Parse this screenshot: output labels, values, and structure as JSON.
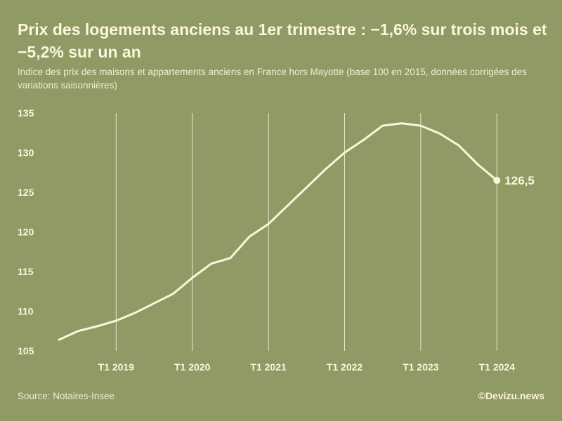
{
  "header": {
    "title": "Prix des logements anciens au 1er trimestre : −1,6% sur trois mois et −5,2% sur un an",
    "subtitle": "Indice des prix des maisons et appartements anciens en France hors Mayotte (base 100 en 2015, données corrigées des variations saisonnières)"
  },
  "footer": {
    "source": "Source: Notaires-Insee",
    "brand": "©Devizu.news"
  },
  "colors": {
    "background": "#8f9a64",
    "line": "#fbf6dc",
    "text": "#fbf6dc"
  },
  "chart_data": {
    "type": "line",
    "title": "Prix des logements anciens au 1er trimestre : −1,6% sur trois mois et −5,2% sur un an",
    "subtitle": "Indice des prix des maisons et appartements anciens en France hors Mayotte (base 100 en 2015, données corrigées des variations saisonnières)",
    "x": [
      "T2 2018",
      "T3 2018",
      "T4 2018",
      "T1 2019",
      "T2 2019",
      "T3 2019",
      "T4 2019",
      "T1 2020",
      "T2 2020",
      "T3 2020",
      "T4 2020",
      "T1 2021",
      "T2 2021",
      "T3 2021",
      "T4 2021",
      "T1 2022",
      "T2 2022",
      "T3 2022",
      "T4 2022",
      "T1 2023",
      "T2 2023",
      "T3 2023",
      "T4 2023",
      "T1 2024"
    ],
    "series": [
      {
        "values": [
          106.4,
          107.5,
          108.1,
          108.8,
          109.8,
          111.0,
          112.2,
          114.2,
          116.0,
          116.7,
          119.4,
          121.0,
          123.3,
          125.6,
          127.9,
          130.0,
          131.6,
          133.4,
          133.7,
          133.4,
          132.4,
          130.9,
          128.5,
          126.5
        ]
      }
    ],
    "x_tick_labels": [
      "T1 2019",
      "T1 2020",
      "T1 2021",
      "T1 2022",
      "T1 2023",
      "T1 2024"
    ],
    "y_ticks": [
      105,
      110,
      115,
      120,
      125,
      130,
      135
    ],
    "ylim": [
      105,
      135
    ],
    "end_label": "126,5",
    "xlabel": "",
    "ylabel": "",
    "grid": "vertical lines at T1 of each year",
    "legend": "none"
  }
}
